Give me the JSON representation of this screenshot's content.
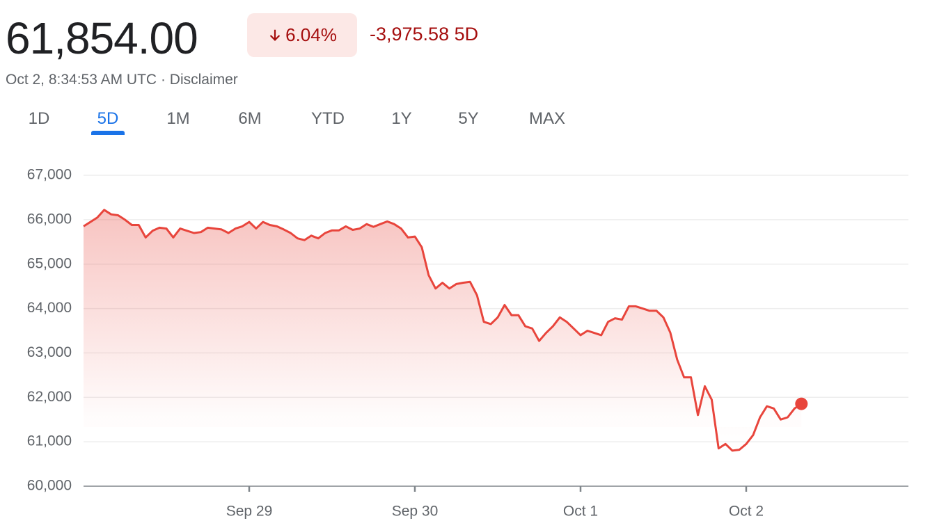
{
  "header": {
    "price": "61,854.00",
    "change_percent": "6.04%",
    "change_amount": "-3,975.58 5D",
    "timestamp": "Oct 2, 8:34:53 AM UTC",
    "separator": "·",
    "disclaimer": "Disclaimer"
  },
  "tabs": {
    "items": [
      "1D",
      "5D",
      "1M",
      "6M",
      "YTD",
      "1Y",
      "5Y",
      "MAX"
    ],
    "selected": 1
  },
  "chart_data": {
    "type": "line",
    "color": "#e8453c",
    "grid": true,
    "values": [
      65850,
      65950,
      66050,
      66220,
      66120,
      66100,
      66000,
      65880,
      65880,
      65600,
      65750,
      65820,
      65800,
      65600,
      65800,
      65750,
      65700,
      65720,
      65820,
      65800,
      65780,
      65700,
      65800,
      65850,
      65950,
      65800,
      65950,
      65880,
      65850,
      65780,
      65700,
      65580,
      65540,
      65640,
      65580,
      65700,
      65760,
      65760,
      65850,
      65770,
      65800,
      65900,
      65840,
      65900,
      65960,
      65900,
      65800,
      65600,
      65620,
      65380,
      64750,
      64450,
      64580,
      64450,
      64550,
      64580,
      64600,
      64300,
      63700,
      63650,
      63800,
      64080,
      63850,
      63850,
      63600,
      63550,
      63270,
      63450,
      63600,
      63800,
      63700,
      63550,
      63400,
      63500,
      63450,
      63400,
      63700,
      63780,
      63750,
      64050,
      64050,
      64000,
      63950,
      63950,
      63800,
      63460,
      62850,
      62450,
      62450,
      61600,
      62250,
      61950,
      60850,
      60950,
      60800,
      60820,
      60950,
      61150,
      61550,
      61800,
      61750,
      61500,
      61550,
      61750,
      61854
    ],
    "xlim": [
      0,
      119.5
    ],
    "xticks": [
      {
        "value": 24,
        "label": "Sep 29"
      },
      {
        "value": 48,
        "label": "Sep 30"
      },
      {
        "value": 72,
        "label": "Oct 1"
      },
      {
        "value": 96,
        "label": "Oct 2"
      }
    ],
    "ylim": [
      60000,
      67000
    ],
    "yticks": [
      {
        "value": 60000,
        "label": "60,000"
      },
      {
        "value": 61000,
        "label": "61,000"
      },
      {
        "value": 62000,
        "label": "62,000"
      },
      {
        "value": 63000,
        "label": "63,000"
      },
      {
        "value": 64000,
        "label": "64,000"
      },
      {
        "value": 65000,
        "label": "65,000"
      },
      {
        "value": 66000,
        "label": "66,000"
      },
      {
        "value": 67000,
        "label": "67,000"
      }
    ]
  }
}
